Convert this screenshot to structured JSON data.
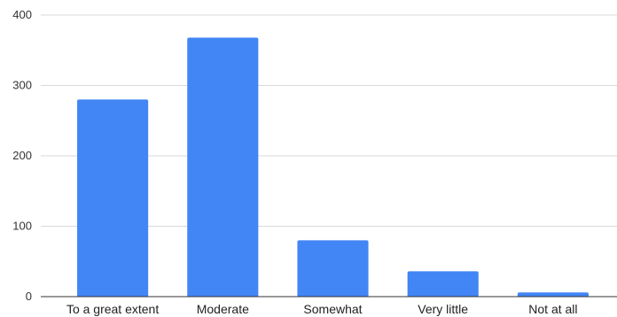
{
  "chart_data": {
    "type": "bar",
    "categories": [
      "To a great extent",
      "Moderate",
      "Somewhat",
      "Very little",
      "Not at all"
    ],
    "values": [
      280,
      368,
      80,
      36,
      6
    ],
    "ylim": [
      0,
      400
    ],
    "yticks": [
      0,
      100,
      200,
      300,
      400
    ],
    "grid": true,
    "legend": "none",
    "colors": {
      "bar": "#4285f4",
      "grid": "#d9d9d9",
      "axis": "#333333"
    }
  }
}
